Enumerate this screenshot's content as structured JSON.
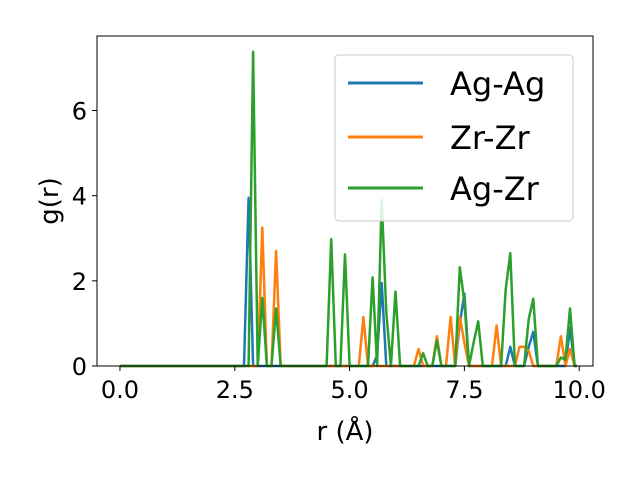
{
  "chart_data": {
    "type": "line",
    "title": "",
    "xlabel": "r (Å)",
    "ylabel": "g(r)",
    "xlim": [
      -0.5,
      10.3
    ],
    "ylim": [
      0,
      7.75
    ],
    "xticks": [
      {
        "value": 0,
        "label": "0.0"
      },
      {
        "value": 2.5,
        "label": "2.5"
      },
      {
        "value": 5,
        "label": "5.0"
      },
      {
        "value": 7.5,
        "label": "7.5"
      },
      {
        "value": 10,
        "label": "10.0"
      }
    ],
    "yticks": [
      {
        "value": 0,
        "label": "0"
      },
      {
        "value": 2,
        "label": "2"
      },
      {
        "value": 4,
        "label": "4"
      },
      {
        "value": 6,
        "label": "6"
      }
    ],
    "grid": false,
    "legend_position": "top-right",
    "series": [
      {
        "name": "Ag-Ag",
        "color": "#1f77b4",
        "points": [
          [
            0,
            0
          ],
          [
            2.7,
            0
          ],
          [
            2.8,
            3.95
          ],
          [
            2.9,
            0
          ],
          [
            3.1,
            0
          ],
          [
            3.2,
            0
          ],
          [
            3.4,
            0
          ],
          [
            3.5,
            0
          ],
          [
            5.5,
            0
          ],
          [
            5.6,
            0.25
          ],
          [
            5.7,
            1.95
          ],
          [
            5.8,
            0
          ],
          [
            7.3,
            0
          ],
          [
            7.4,
            1.0
          ],
          [
            7.5,
            1.7
          ],
          [
            7.6,
            0
          ],
          [
            8.4,
            0
          ],
          [
            8.5,
            0.45
          ],
          [
            8.6,
            0
          ],
          [
            8.8,
            0
          ],
          [
            8.9,
            0.45
          ],
          [
            9.0,
            0.8
          ],
          [
            9.1,
            0
          ],
          [
            9.7,
            0
          ],
          [
            9.8,
            0.9
          ],
          [
            9.9,
            0
          ],
          [
            9.95,
            0
          ]
        ]
      },
      {
        "name": "Zr-Zr",
        "color": "#ff7f0e",
        "points": [
          [
            0,
            0
          ],
          [
            3.0,
            0
          ],
          [
            3.1,
            3.25
          ],
          [
            3.2,
            0
          ],
          [
            3.3,
            0
          ],
          [
            3.4,
            2.7
          ],
          [
            3.5,
            0
          ],
          [
            5.2,
            0
          ],
          [
            5.3,
            1.15
          ],
          [
            5.4,
            0
          ],
          [
            6.4,
            0
          ],
          [
            6.5,
            0.4
          ],
          [
            6.6,
            0
          ],
          [
            6.8,
            0
          ],
          [
            6.9,
            0.7
          ],
          [
            7.0,
            0
          ],
          [
            7.1,
            0
          ],
          [
            7.2,
            1.15
          ],
          [
            7.3,
            0
          ],
          [
            7.4,
            1.15
          ],
          [
            7.5,
            0.55
          ],
          [
            7.6,
            0
          ],
          [
            8.1,
            0
          ],
          [
            8.2,
            0.95
          ],
          [
            8.3,
            0
          ],
          [
            8.6,
            0
          ],
          [
            8.7,
            0.45
          ],
          [
            8.8,
            0.45
          ],
          [
            8.9,
            0.35
          ],
          [
            9.0,
            0
          ],
          [
            9.5,
            0
          ],
          [
            9.6,
            0.7
          ],
          [
            9.7,
            0
          ],
          [
            9.8,
            0.4
          ],
          [
            9.9,
            0
          ],
          [
            9.95,
            0
          ]
        ]
      },
      {
        "name": "Ag-Zr",
        "color": "#2ca02c",
        "points": [
          [
            0,
            0
          ],
          [
            2.8,
            0
          ],
          [
            2.9,
            7.38
          ],
          [
            3.0,
            0
          ],
          [
            3.1,
            1.6
          ],
          [
            3.2,
            0
          ],
          [
            3.3,
            0
          ],
          [
            3.4,
            1.35
          ],
          [
            3.5,
            0
          ],
          [
            4.5,
            0
          ],
          [
            4.6,
            2.98
          ],
          [
            4.7,
            0
          ],
          [
            4.8,
            0
          ],
          [
            4.9,
            2.62
          ],
          [
            5.0,
            0
          ],
          [
            5.4,
            0
          ],
          [
            5.5,
            2.08
          ],
          [
            5.6,
            0
          ],
          [
            5.7,
            3.9
          ],
          [
            5.8,
            1.25
          ],
          [
            5.9,
            0
          ],
          [
            6.0,
            1.75
          ],
          [
            6.1,
            0
          ],
          [
            6.5,
            0
          ],
          [
            6.6,
            0.3
          ],
          [
            6.7,
            0
          ],
          [
            6.8,
            0
          ],
          [
            6.9,
            0.6
          ],
          [
            7.0,
            0
          ],
          [
            7.3,
            0
          ],
          [
            7.4,
            2.32
          ],
          [
            7.5,
            1.5
          ],
          [
            7.6,
            0
          ],
          [
            7.7,
            0.55
          ],
          [
            7.8,
            1.05
          ],
          [
            7.9,
            0
          ],
          [
            8.3,
            0
          ],
          [
            8.4,
            1.8
          ],
          [
            8.5,
            2.65
          ],
          [
            8.6,
            0
          ],
          [
            8.8,
            0
          ],
          [
            8.9,
            1.1
          ],
          [
            9.0,
            1.58
          ],
          [
            9.1,
            0
          ],
          [
            9.5,
            0
          ],
          [
            9.6,
            0.2
          ],
          [
            9.7,
            0.15
          ],
          [
            9.8,
            1.35
          ],
          [
            9.9,
            0
          ],
          [
            9.95,
            0
          ]
        ]
      }
    ]
  }
}
